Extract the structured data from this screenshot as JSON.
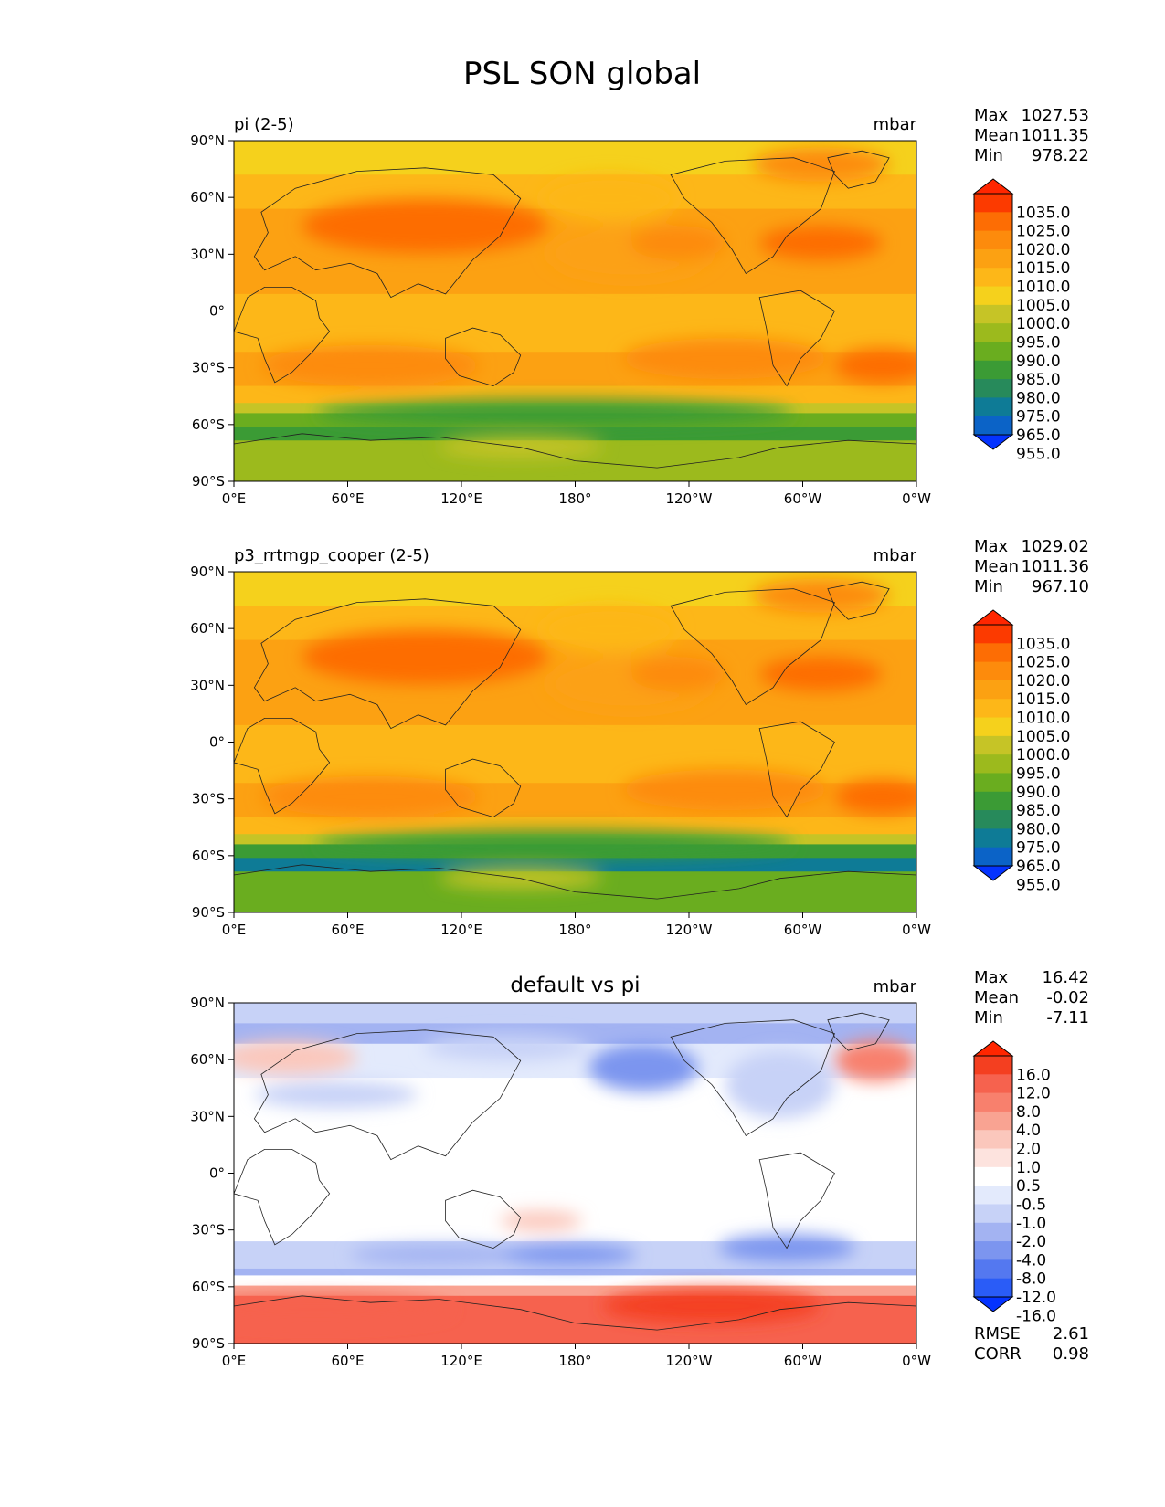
{
  "title": "PSL SON global",
  "colors": {
    "sequential": [
      "#0433ff",
      "#0b63c7",
      "#0e7b96",
      "#278a5b",
      "#3b9b35",
      "#6aad1f",
      "#9cba1d",
      "#c6c426",
      "#f5d11c",
      "#fdb718",
      "#fca112",
      "#fd8b0c",
      "#fd6d04",
      "#fc3a00",
      "#ff2600"
    ],
    "diverging": [
      "#0433ff",
      "#2a5cf7",
      "#5478f0",
      "#7c95ef",
      "#a3b3f2",
      "#c7d2f7",
      "#e3eafc",
      "#ffffff",
      "#fde3de",
      "#fbc7bc",
      "#f9a392",
      "#f8806d",
      "#f6624e",
      "#f43f20",
      "#ff2600"
    ]
  },
  "ticks": {
    "lat": [
      "90°N",
      "60°N",
      "30°N",
      "0°",
      "30°S",
      "60°S",
      "90°S"
    ],
    "lon": [
      "0°E",
      "60°E",
      "120°E",
      "180°",
      "120°W",
      "60°W",
      "0°W"
    ]
  },
  "panels": [
    {
      "left_title": "pi (2-5)",
      "center_title": "",
      "units": "mbar",
      "stats": [
        {
          "label": "Max",
          "value": "1027.53"
        },
        {
          "label": "Mean",
          "value": "1011.35"
        },
        {
          "label": "Min",
          "value": "978.22"
        }
      ],
      "levels": [
        "1035.0",
        "1025.0",
        "1020.0",
        "1015.0",
        "1010.0",
        "1005.0",
        "1000.0",
        "995.0",
        "990.0",
        "985.0",
        "980.0",
        "975.0",
        "965.0",
        "955.0"
      ],
      "colormap": "sequential",
      "footer_stats": []
    },
    {
      "left_title": "p3_rrtmgp_cooper (2-5)",
      "center_title": "",
      "units": "mbar",
      "stats": [
        {
          "label": "Max",
          "value": "1029.02"
        },
        {
          "label": "Mean",
          "value": "1011.36"
        },
        {
          "label": "Min",
          "value": "967.10"
        }
      ],
      "levels": [
        "1035.0",
        "1025.0",
        "1020.0",
        "1015.0",
        "1010.0",
        "1005.0",
        "1000.0",
        "995.0",
        "990.0",
        "985.0",
        "980.0",
        "975.0",
        "965.0",
        "955.0"
      ],
      "colormap": "sequential",
      "footer_stats": []
    },
    {
      "left_title": "",
      "center_title": "default vs pi",
      "units": "mbar",
      "stats": [
        {
          "label": "Max",
          "value": "16.42"
        },
        {
          "label": "Mean",
          "value": "-0.02"
        },
        {
          "label": "Min",
          "value": "-7.11"
        }
      ],
      "levels": [
        "16.0",
        "12.0",
        "8.0",
        "4.0",
        "2.0",
        "1.0",
        "0.5",
        "-0.5",
        "-1.0",
        "-2.0",
        "-4.0",
        "-8.0",
        "-12.0",
        "-16.0"
      ],
      "colormap": "diverging",
      "footer_stats": [
        {
          "label": "RMSE",
          "value": "2.61"
        },
        {
          "label": "CORR",
          "value": "0.98"
        }
      ]
    }
  ]
}
